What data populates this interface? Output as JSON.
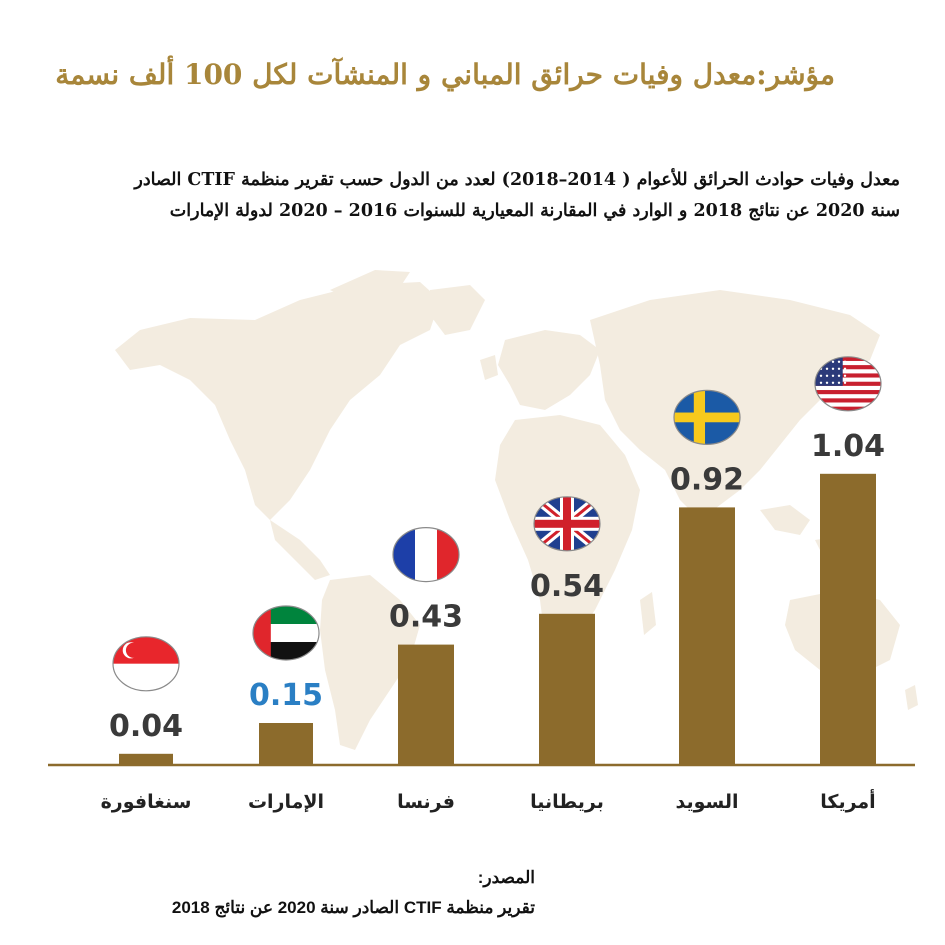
{
  "title": "مؤشر:معدل وفيات حرائق المباني و المنشآت لكل 100 ألف نسمة",
  "subtitle_line1": "معدل وفيات حوادث الحرائق للأعوام ( 2014–2018) لعدد من الدول حسب تقرير منظمة CTIF الصادر",
  "subtitle_line2": "سنة 2020 عن نتائج 2018 و الوارد في المقارنة المعيارية للسنوات 2016 – 2020 لدولة الإمارات",
  "source_label": "المصدر:",
  "source_text": "تقرير منظمة CTIF الصادر سنة 2020 عن نتائج 2018",
  "colors": {
    "bar": "#8c6b2c",
    "axis": "#8c6b2c",
    "title": "#a8863a",
    "value_label": "#3a3a3a",
    "highlight_label": "#2a7fc4",
    "map": "#f3ece0"
  },
  "chart_data": {
    "type": "bar",
    "categories": [
      "سنغافورة",
      "الإمارات",
      "فرنسا",
      "بريطانيا",
      "السويد",
      "أمريكا"
    ],
    "values": [
      0.04,
      0.15,
      0.43,
      0.54,
      0.92,
      1.04
    ],
    "value_labels": [
      "0.04",
      "0.15",
      "0.43",
      "0.54",
      "0.92",
      "1.04"
    ],
    "highlight_category": "الإمارات",
    "flags": [
      "singapore-flag",
      "uae-flag",
      "france-flag",
      "uk-flag",
      "sweden-flag",
      "usa-flag"
    ],
    "background": "world-map",
    "grid": false,
    "legend": "none"
  }
}
